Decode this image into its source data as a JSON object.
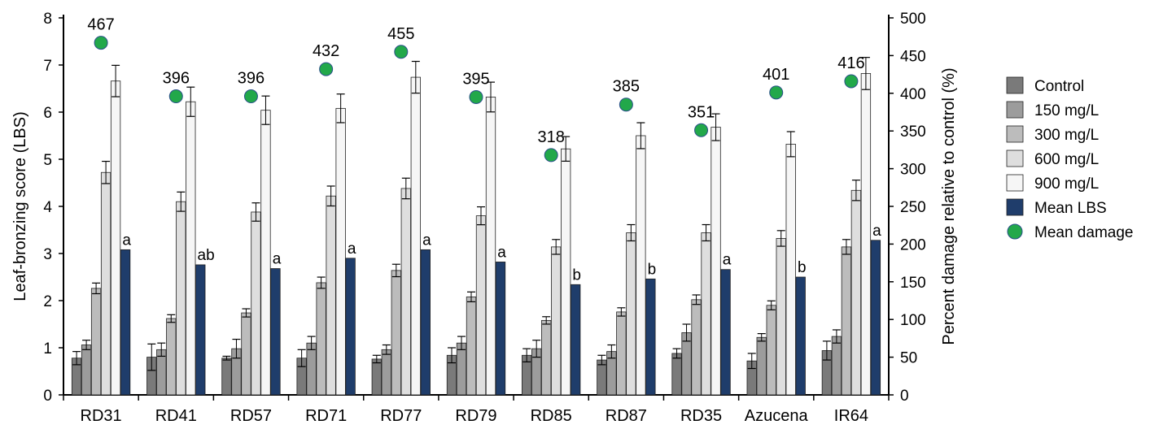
{
  "chart_data": {
    "type": "bar",
    "title": "",
    "ylabel": "Leaf-bronzing score (LBS)",
    "y2label": "Percent damage relative to control (%)",
    "ylim": [
      0,
      8
    ],
    "y2lim": [
      0,
      500
    ],
    "yticks": [
      "0",
      "1",
      "2",
      "3",
      "4",
      "5",
      "6",
      "7",
      "8"
    ],
    "y2ticks": [
      "0",
      "50",
      "100",
      "150",
      "200",
      "250",
      "300",
      "350",
      "400",
      "450",
      "500"
    ],
    "categories": [
      "RD31",
      "RD41",
      "RD57",
      "RD71",
      "RD77",
      "RD79",
      "RD85",
      "RD87",
      "RD35",
      "Azucena",
      "IR64"
    ],
    "series": [
      {
        "name": "Control",
        "color": "#7a7a7a",
        "values": [
          0.78,
          0.8,
          0.78,
          0.78,
          0.76,
          0.84,
          0.84,
          0.74,
          0.88,
          0.72,
          0.94
        ],
        "errors": [
          0.14,
          0.28,
          0.04,
          0.18,
          0.08,
          0.16,
          0.14,
          0.1,
          0.1,
          0.16,
          0.2
        ]
      },
      {
        "name": "150 mg/L",
        "color": "#9c9c9c",
        "values": [
          1.06,
          0.96,
          0.98,
          1.1,
          0.96,
          1.1,
          0.98,
          0.92,
          1.32,
          1.22,
          1.24
        ],
        "errors": [
          0.1,
          0.14,
          0.2,
          0.14,
          0.1,
          0.14,
          0.18,
          0.14,
          0.18,
          0.08,
          0.14
        ]
      },
      {
        "name": "300 mg/L",
        "color": "#bcbcbc",
        "values": [
          2.26,
          1.62,
          1.74,
          2.38,
          2.64,
          2.08,
          1.58,
          1.76,
          2.02,
          1.9,
          3.14
        ]
      },
      {
        "name": "600 mg/L",
        "color": "#dedede",
        "values": [
          4.72,
          4.1,
          3.88,
          4.22,
          4.38,
          3.8,
          3.14,
          3.44,
          3.44,
          3.32,
          4.34
        ]
      },
      {
        "name": "900 mg/L",
        "color": "#f6f6f6",
        "values": [
          6.66,
          6.22,
          6.04,
          6.08,
          6.74,
          6.32,
          5.22,
          5.5,
          5.68,
          5.32,
          6.82
        ]
      },
      {
        "name": "Mean LBS",
        "color": "#1f3d6b",
        "values": [
          3.08,
          2.76,
          2.68,
          2.9,
          3.08,
          2.82,
          2.34,
          2.46,
          2.66,
          2.5,
          3.28
        ]
      },
      {
        "name": "Mean damage",
        "color": "#22a84a",
        "axis": "right",
        "values": [
          467,
          396,
          396,
          432,
          455,
          395,
          318,
          385,
          351,
          401,
          416
        ]
      }
    ],
    "mean_damage_labels": [
      "467",
      "396",
      "396",
      "432",
      "455",
      "395",
      "318",
      "385",
      "351",
      "401",
      "416"
    ],
    "significance_letters": [
      "a",
      "ab",
      "a",
      "a",
      "a",
      "a",
      "b",
      "b",
      "a",
      "b",
      "a"
    ],
    "legend_position": "right",
    "grid": false
  }
}
